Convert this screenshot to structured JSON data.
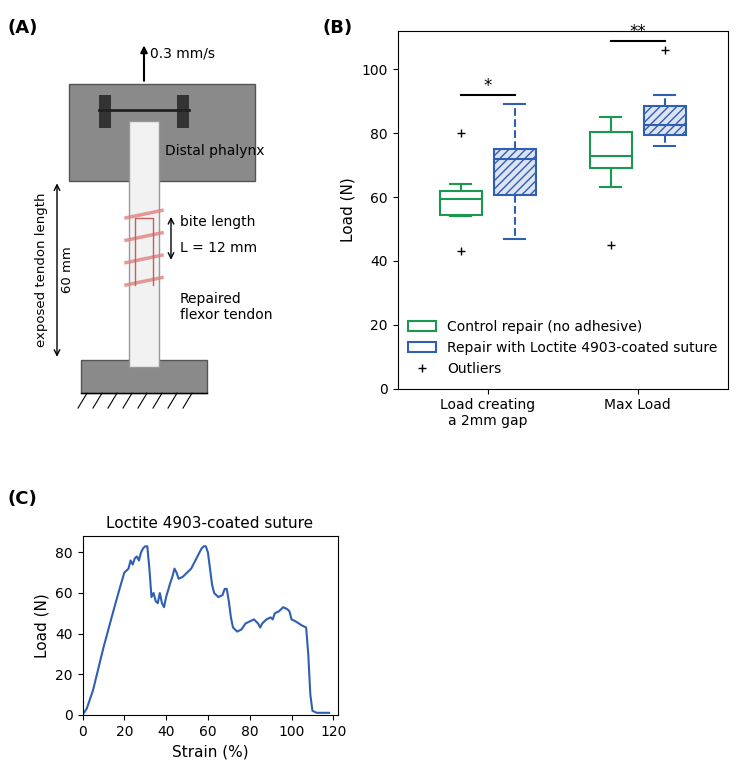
{
  "panel_labels": [
    "(A)",
    "(B)",
    "(C)"
  ],
  "diagram": {
    "speed_label": "0.3 mm/s",
    "top_grip": "Distal phalynx",
    "length_label": "exposed tendon length",
    "length_value": "60 mm",
    "bite_label": "bite length",
    "bite_value": "L = 12 mm",
    "tendon_label": "Repaired flexor tendon"
  },
  "chart_data": [
    {
      "type": "box",
      "ylabel": "Load (N)",
      "categories": [
        "Load creating a 2mm gap",
        "Max Load"
      ],
      "ylim": [
        0,
        112
      ],
      "yticks": [
        0,
        20,
        40,
        60,
        80,
        100
      ],
      "legend": "lower center",
      "marker": "+",
      "outliers_name": "Outliers",
      "series": [
        {
          "name": "Control repair (no adhesive)",
          "color": "#1a9850",
          "line_style": "solid",
          "boxes": [
            {
              "whislo": 54,
              "q1": 54.5,
              "med": 59.5,
              "q3": 62,
              "whishi": 64,
              "fliers": [
                80,
                43
              ]
            },
            {
              "whislo": 63,
              "q1": 69,
              "med": 73,
              "q3": 80.5,
              "whishi": 85,
              "fliers": [
                45
              ]
            }
          ]
        },
        {
          "name": "Repair with Loctite 4903-coated suture",
          "color": "#2f5fb3",
          "line_style": "dashed",
          "boxes": [
            {
              "whislo": 47,
              "q1": 60.5,
              "med": 72,
              "q3": 75,
              "whishi": 89,
              "fliers": []
            },
            {
              "whislo": 76,
              "q1": 79.5,
              "med": 82.5,
              "q3": 88.5,
              "whishi": 92,
              "fliers": [
                106
              ]
            }
          ]
        }
      ],
      "annotations": [
        {
          "text": "*",
          "category": "Load creating a 2mm gap"
        },
        {
          "text": "**",
          "category": "Max Load"
        }
      ]
    },
    {
      "type": "line",
      "title": "Loctite 4903-coated suture",
      "xlabel": "Strain (%)",
      "ylabel": "Load (N)",
      "color": "#2f5fb3",
      "xlim": [
        0,
        122
      ],
      "xticks": [
        0,
        20,
        40,
        60,
        80,
        100,
        120
      ],
      "ylim": [
        0,
        88
      ],
      "yticks": [
        0,
        20,
        40,
        60,
        80
      ],
      "x": [
        0,
        2,
        5,
        10,
        15,
        18,
        20,
        22,
        23,
        24,
        25,
        26,
        27,
        28,
        29,
        30,
        31,
        32,
        33,
        34,
        35,
        36,
        37,
        38,
        39,
        40,
        42,
        43,
        44,
        45,
        46,
        48,
        50,
        52,
        54,
        56,
        57,
        58,
        59,
        60,
        61,
        62,
        63,
        65,
        67,
        68,
        69,
        70,
        71,
        72,
        74,
        76,
        78,
        80,
        82,
        84,
        85,
        86,
        88,
        90,
        91,
        92,
        94,
        96,
        98,
        99,
        100,
        102,
        105,
        107,
        108,
        109,
        110,
        112,
        114,
        118
      ],
      "values": [
        0,
        3,
        12,
        33,
        52,
        63,
        70,
        72,
        76,
        74,
        77,
        78,
        76,
        80,
        82,
        83,
        83,
        72,
        58,
        60,
        56,
        55,
        60,
        55,
        53,
        58,
        65,
        68,
        72,
        70,
        67,
        68,
        70,
        72,
        76,
        80,
        82,
        83,
        83,
        80,
        72,
        64,
        60,
        58,
        59,
        62,
        62,
        56,
        48,
        43,
        41,
        42,
        45,
        46,
        47,
        45,
        43,
        45,
        47,
        48,
        47,
        50,
        51,
        53,
        52,
        51,
        47,
        46,
        44,
        43,
        30,
        10,
        2,
        1,
        1,
        1
      ]
    }
  ]
}
